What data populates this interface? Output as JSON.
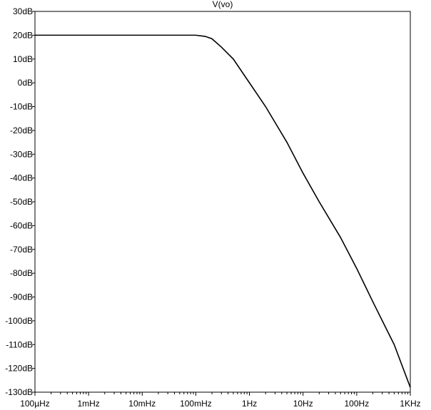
{
  "chart_data": {
    "type": "line",
    "title": "V(vo)",
    "xlabel": "",
    "ylabel": "",
    "x_scale": "log",
    "xlim": [
      0.0001,
      1000
    ],
    "ylim": [
      -130,
      30
    ],
    "grid": false,
    "x_ticks": [
      {
        "value": 0.0001,
        "label": "100µHz"
      },
      {
        "value": 0.001,
        "label": "1mHz"
      },
      {
        "value": 0.01,
        "label": "10mHz"
      },
      {
        "value": 0.1,
        "label": "100mHz"
      },
      {
        "value": 1,
        "label": "1Hz"
      },
      {
        "value": 10,
        "label": "10Hz"
      },
      {
        "value": 100,
        "label": "100Hz"
      },
      {
        "value": 1000,
        "label": "1KHz"
      }
    ],
    "y_ticks": [
      {
        "value": 30,
        "label": "30dB"
      },
      {
        "value": 20,
        "label": "20dB"
      },
      {
        "value": 10,
        "label": "10dB"
      },
      {
        "value": 0,
        "label": "0dB"
      },
      {
        "value": -10,
        "label": "-10dB"
      },
      {
        "value": -20,
        "label": "-20dB"
      },
      {
        "value": -30,
        "label": "-30dB"
      },
      {
        "value": -40,
        "label": "-40dB"
      },
      {
        "value": -50,
        "label": "-50dB"
      },
      {
        "value": -60,
        "label": "-60dB"
      },
      {
        "value": -70,
        "label": "-70dB"
      },
      {
        "value": -80,
        "label": "-80dB"
      },
      {
        "value": -90,
        "label": "-90dB"
      },
      {
        "value": -100,
        "label": "-100dB"
      },
      {
        "value": -110,
        "label": "-110dB"
      },
      {
        "value": -120,
        "label": "-120dB"
      },
      {
        "value": -130,
        "label": "-130dB"
      }
    ],
    "series": [
      {
        "color": "#000000",
        "x": [
          0.0001,
          0.001,
          0.01,
          0.05,
          0.1,
          0.15,
          0.2,
          0.3,
          0.5,
          1,
          2,
          5,
          10,
          20,
          50,
          100,
          200,
          500,
          1000
        ],
        "y": [
          20,
          20,
          20,
          20,
          20,
          19.5,
          18.5,
          15,
          10,
          0,
          -10,
          -25,
          -38,
          -50,
          -65,
          -78,
          -92,
          -110,
          -128
        ]
      }
    ]
  }
}
